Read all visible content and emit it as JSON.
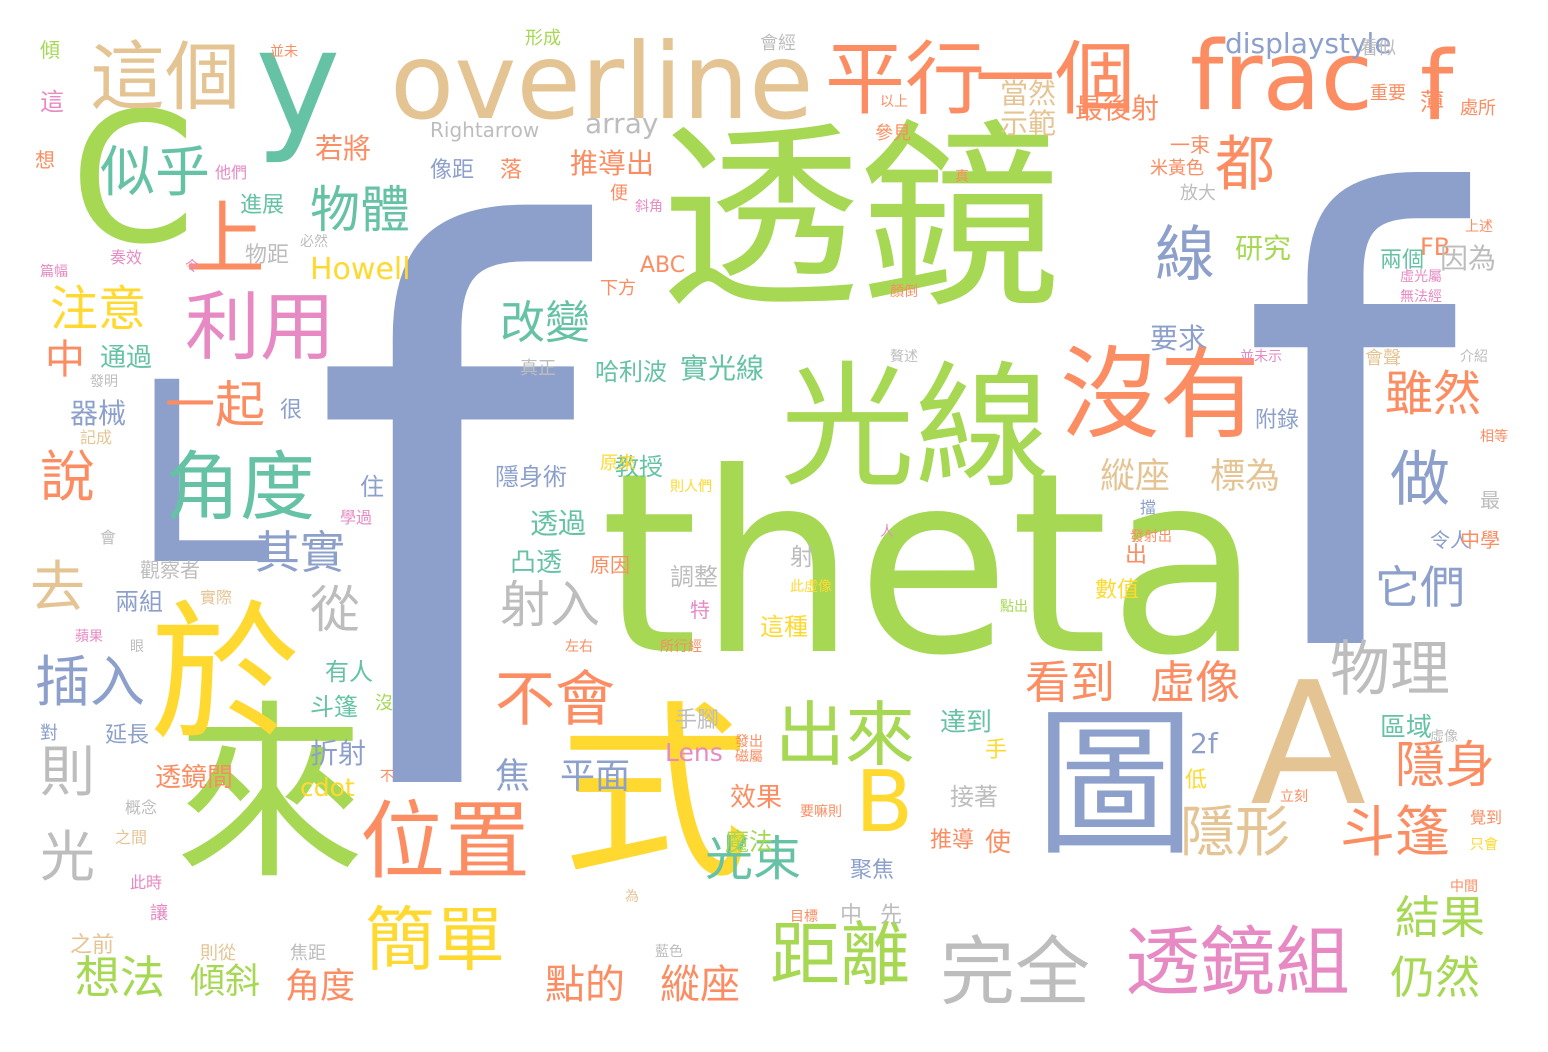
{
  "words": [
    "f",
    "theta",
    "透鏡",
    "f",
    "式",
    "來",
    "於",
    "光線",
    "y",
    "C",
    "A",
    "圖",
    "沒有",
    "L",
    "overline",
    "frac",
    "f",
    "平行",
    "一個",
    "這個",
    "利用",
    "角度",
    "位置",
    "簡單",
    "透鏡組",
    "距離",
    "完全",
    "物理",
    "B",
    "出來",
    "隱形",
    "斗篷",
    "不會",
    "看到",
    "虛像",
    "上",
    "都",
    "線",
    "物體",
    "似乎",
    "注意",
    "說",
    "去",
    "則",
    "光",
    "插入",
    "一起",
    "改變",
    "其實",
    "從",
    "射入",
    "它們",
    "雖然",
    "做",
    "縱座",
    "標為",
    "光束",
    "焦",
    "平面",
    "想法",
    "傾斜",
    "角度",
    "點的",
    "縱座",
    "結果",
    "仍然",
    "隱身",
    "中",
    "displaystyle",
    "Rightarrow",
    "array",
    "Howell",
    "Lens",
    "cdot",
    "2f",
    "FB",
    "ABC",
    "當然",
    "示範",
    "最後射",
    "若將",
    "推導出",
    "像距",
    "落",
    "研究",
    "因為",
    "兩個",
    "要求",
    "哈利波",
    "實光線",
    "教授",
    "隱身術",
    "透過",
    "凸透",
    "原因",
    "調整",
    "射",
    "出",
    "數值",
    "這種",
    "有人",
    "斗篷",
    "折射",
    "透鏡間",
    "效果",
    "魔法",
    "推導",
    "使",
    "接著",
    "手腳",
    "達到",
    "手",
    "低",
    "區域",
    "附錄",
    "最",
    "令人",
    "中學",
    "聚焦",
    "中",
    "先",
    "焦距",
    "之前",
    "則從",
    "讓",
    "此時",
    "概念",
    "之間",
    "對",
    "延長",
    "沒",
    "兩組",
    "觀察者",
    "實際",
    "蘋果",
    "眼",
    "會",
    "住",
    "學過",
    "很",
    "器械",
    "記成",
    "發明",
    "通過",
    "令",
    "物距",
    "奏效",
    "篇幅",
    "進展",
    "他們",
    "想",
    "這",
    "傾",
    "並未",
    "形成",
    "會經",
    "看似",
    "重要",
    "薄",
    "處所",
    "上述",
    "以上",
    "參見",
    "一束",
    "米黃色",
    "放大",
    "便",
    "斜角",
    "必然",
    "顏倒",
    "虛光屬",
    "無法經",
    "下方",
    "真正",
    "贅述",
    "並未示",
    "會聲",
    "介紹",
    "相等",
    "則人們",
    "原來",
    "人",
    "擋",
    "發射出",
    "此虛像",
    "點出",
    "特",
    "所行經",
    "左右",
    "發出",
    "磁屬",
    "立刻",
    "要嘛則",
    "覺到",
    "只會",
    "中間",
    "目標",
    "為",
    "藍色",
    "不",
    "虛像",
    "真"
  ]
}
